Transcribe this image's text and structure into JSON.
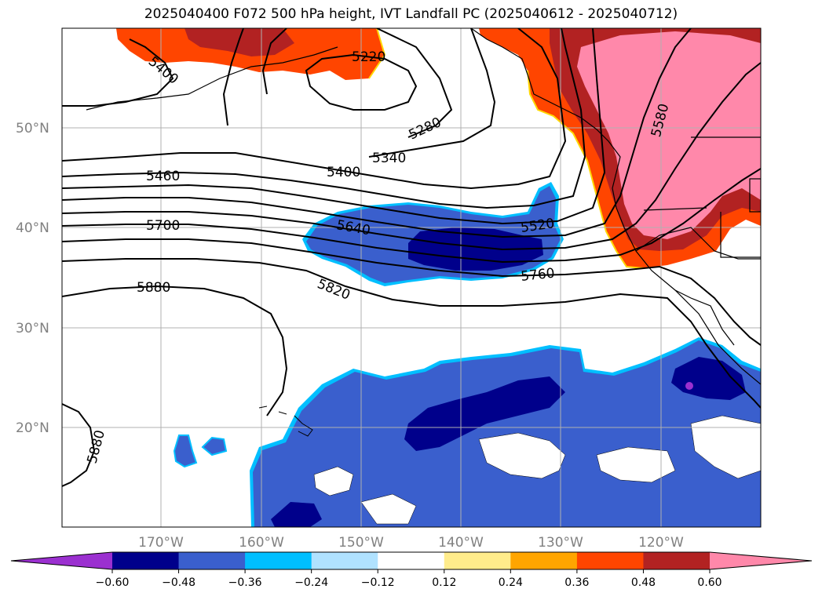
{
  "title": "2025040400 F072 500 hPa height, IVT Landfall PC (2025040612 - 2025040712)",
  "lat_labels": [
    "50°N",
    "40°N",
    "30°N",
    "20°N"
  ],
  "lon_labels": [
    "170°W",
    "160°W",
    "150°W",
    "140°W",
    "130°W",
    "120°W"
  ],
  "colorbar": {
    "ticks": [
      "−0.60",
      "−0.48",
      "−0.36",
      "−0.24",
      "−0.12",
      "0.12",
      "0.24",
      "0.36",
      "0.48",
      "0.60"
    ],
    "colors": [
      "#9b30d0",
      "#00008b",
      "#3a5fcd",
      "#00bfff",
      "#b0e2ff",
      "#ffffff",
      "#ffec8b",
      "#ffa500",
      "#ff4500",
      "#b22222",
      "#ff88aa"
    ]
  },
  "contour_labels": [
    "5400",
    "5220",
    "5280",
    "5340",
    "5400",
    "5460",
    "5580",
    "5700",
    "5640",
    "5520",
    "5760",
    "5820",
    "5880",
    "5880"
  ]
}
